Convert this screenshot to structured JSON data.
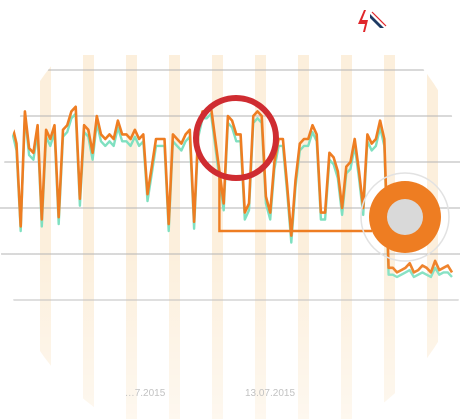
{
  "logo": {
    "name": "brand-logo",
    "accent": "#e0262b",
    "secondary": "#1d3a63"
  },
  "chart_data": {
    "type": "line",
    "x_ticks": [
      "…7.2015",
      "13.07.2015"
    ],
    "ylim": [
      0,
      100
    ],
    "grid": true,
    "weekend_bands": true,
    "series": [
      {
        "color": "#ee7d22",
        "values": [
          76,
          76,
          68,
          32,
          82,
          66,
          64,
          76,
          35,
          74,
          70,
          76,
          36,
          74,
          76,
          82,
          84,
          44,
          76,
          74,
          64,
          80,
          72,
          70,
          72,
          70,
          78,
          72,
          72,
          70,
          74,
          70,
          72,
          46,
          58,
          70,
          70,
          70,
          33,
          72,
          70,
          68,
          72,
          74,
          34,
          74,
          82,
          82,
          84,
          70,
          56,
          42,
          80,
          78,
          72,
          72,
          38,
          42,
          80,
          82,
          80,
          45,
          38,
          60,
          70,
          70,
          50,
          28,
          52,
          68,
          70,
          70,
          76,
          72,
          38,
          38,
          64,
          62,
          56,
          40,
          58,
          60,
          70,
          56,
          40,
          72,
          68,
          70,
          78,
          70,
          14,
          14,
          12,
          13,
          14,
          16,
          12,
          13,
          15,
          14,
          12,
          17,
          13,
          14,
          15,
          12
        ]
      },
      {
        "color": "#7fe0c0",
        "values": [
          74,
          73,
          65,
          30,
          80,
          63,
          61,
          73,
          32,
          71,
          67,
          73,
          33,
          71,
          73,
          79,
          81,
          41,
          73,
          71,
          61,
          77,
          69,
          67,
          69,
          67,
          75,
          69,
          69,
          67,
          71,
          67,
          69,
          43,
          55,
          67,
          67,
          67,
          30,
          69,
          67,
          65,
          69,
          71,
          31,
          71,
          79,
          79,
          81,
          67,
          53,
          39,
          77,
          75,
          69,
          69,
          35,
          39,
          77,
          79,
          77,
          42,
          35,
          57,
          67,
          67,
          47,
          25,
          49,
          65,
          67,
          67,
          73,
          69,
          35,
          35,
          61,
          59,
          53,
          37,
          55,
          57,
          67,
          53,
          37,
          69,
          65,
          67,
          75,
          67,
          11,
          11,
          10,
          11,
          12,
          13,
          10,
          11,
          12,
          11,
          10,
          14,
          11,
          12,
          12,
          10
        ]
      }
    ],
    "annotations": [
      {
        "type": "circle-highlight",
        "color": "#cf2c31"
      },
      {
        "type": "step-connector",
        "color": "#ee7d22",
        "level": 30
      },
      {
        "type": "ring-marker",
        "outer_color": "#ee7d22",
        "inner_color": "#d9d9d9"
      }
    ]
  }
}
